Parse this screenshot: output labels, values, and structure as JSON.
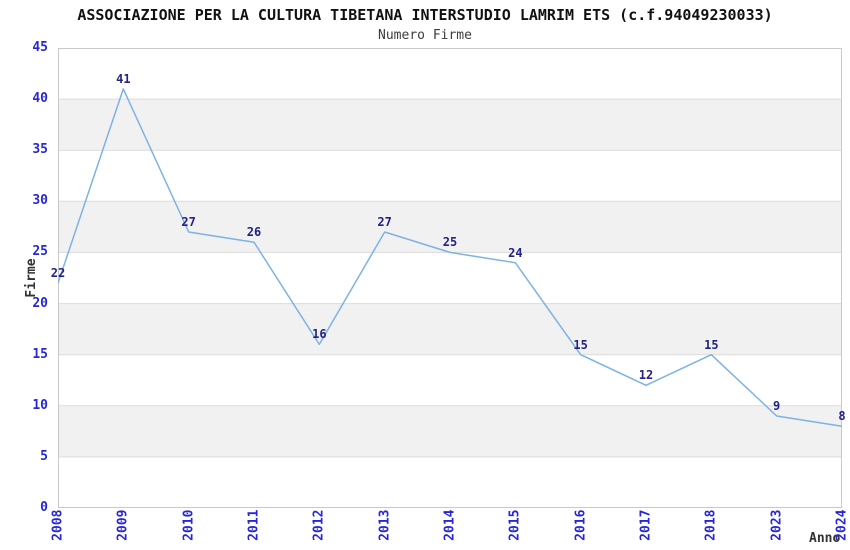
{
  "page": {
    "title": "ASSOCIAZIONE PER LA CULTURA TIBETANA INTERSTUDIO LAMRIM ETS (c.f.94049230033)",
    "subtitle": "Numero Firme"
  },
  "chart_data": {
    "type": "line",
    "title": "ASSOCIAZIONE PER LA CULTURA TIBETANA INTERSTUDIO LAMRIM ETS (c.f.94049230033)",
    "subtitle": "Numero Firme",
    "xlabel": "Anno",
    "ylabel": "Firme",
    "categories": [
      "2008",
      "2009",
      "2010",
      "2011",
      "2012",
      "2013",
      "2014",
      "2015",
      "2016",
      "2017",
      "2018",
      "2023",
      "2024"
    ],
    "series": [
      {
        "name": "Numero Firme",
        "values": [
          22,
          41,
          27,
          26,
          16,
          27,
          25,
          24,
          15,
          12,
          15,
          9,
          8
        ]
      }
    ],
    "ylim": [
      0,
      45
    ],
    "ytick_step": 5,
    "yticks": [
      0,
      5,
      10,
      15,
      20,
      25,
      30,
      35,
      40,
      45
    ],
    "grid": "horizontal gridlines every 5 units with alternating gray bands",
    "legend": "none",
    "data_labels_shown": true,
    "colors": {
      "line": "#7db2e5",
      "data_label": "#222288",
      "tick_label": "#2727d8",
      "title": "#111111",
      "subtitle": "#3c3c3c",
      "axis_label": "#333333",
      "band_fill": "#f1f1f1",
      "gridline": "#dcdcdc",
      "plot_border": "#c9c9c9",
      "background": "#ffffff"
    }
  }
}
